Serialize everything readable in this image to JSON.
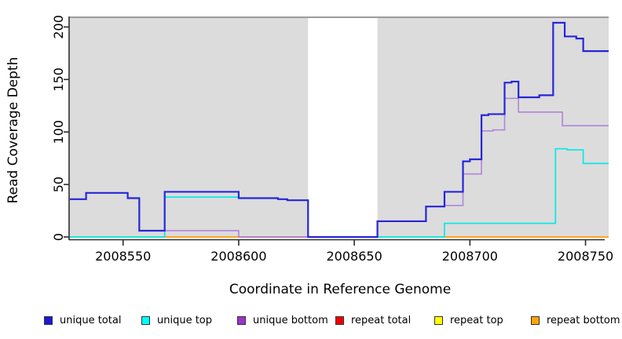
{
  "chart_data": {
    "type": "line",
    "subtype": "step",
    "title": "",
    "xlabel": "Coordinate in Reference Genome",
    "ylabel": "Read Coverage Depth",
    "xlim": [
      2008527,
      2008760
    ],
    "ylim": [
      0,
      210
    ],
    "x_ticks": [
      2008550,
      2008600,
      2008650,
      2008700,
      2008750
    ],
    "y_ticks": [
      0,
      50,
      100,
      150,
      200
    ],
    "grid": false,
    "plot_background": "#DCDCDC",
    "masked_region": {
      "from": 2008630,
      "to": 2008660,
      "color": "#FFFFFF"
    },
    "legend": {
      "position": "bottom",
      "entries": [
        {
          "label": "unique total",
          "color": "#1A1AD6"
        },
        {
          "label": "unique top",
          "color": "#00FFFF"
        },
        {
          "label": "unique bottom",
          "color": "#9933CC"
        },
        {
          "label": "repeat total",
          "color": "#EE0000"
        },
        {
          "label": "repeat top",
          "color": "#FFFF00"
        },
        {
          "label": "repeat bottom",
          "color": "#FFA500"
        }
      ]
    },
    "series": [
      {
        "name": "repeat total",
        "line_color": "#EE0000",
        "width": 2,
        "z": 1,
        "steps": [
          [
            2008527,
            0
          ]
        ]
      },
      {
        "name": "repeat top",
        "line_color": "#FFFF33",
        "width": 2,
        "z": 2,
        "steps": [
          [
            2008527,
            0
          ]
        ]
      },
      {
        "name": "repeat bottom",
        "line_color": "#FFA521",
        "width": 2,
        "z": 3,
        "steps": [
          [
            2008527,
            0
          ]
        ]
      },
      {
        "name": "unique bottom",
        "line_color": "#B184DC",
        "width": 1.6,
        "z": 5,
        "steps": [
          [
            2008527,
            36
          ],
          [
            2008534,
            42
          ],
          [
            2008552,
            37
          ],
          [
            2008557,
            6
          ],
          [
            2008600,
            0
          ],
          [
            2008660,
            15
          ],
          [
            2008681,
            29
          ],
          [
            2008689,
            30
          ],
          [
            2008697,
            60
          ],
          [
            2008705,
            101
          ],
          [
            2008710,
            102
          ],
          [
            2008715,
            132
          ],
          [
            2008721,
            119
          ],
          [
            2008740,
            106
          ]
        ]
      },
      {
        "name": "unique top",
        "line_color": "#00E8E8",
        "width": 1.6,
        "z": 6,
        "steps": [
          [
            2008527,
            0
          ],
          [
            2008568,
            38
          ],
          [
            2008600,
            37
          ],
          [
            2008617,
            36
          ],
          [
            2008621,
            35
          ],
          [
            2008630,
            0
          ],
          [
            2008689,
            13
          ],
          [
            2008737,
            84
          ],
          [
            2008742,
            83
          ],
          [
            2008749,
            70
          ]
        ]
      },
      {
        "name": "unique total",
        "line_color": "#2626D8",
        "width": 2.2,
        "z": 7,
        "steps": [
          [
            2008527,
            36
          ],
          [
            2008534,
            42
          ],
          [
            2008552,
            37
          ],
          [
            2008557,
            6
          ],
          [
            2008568,
            43
          ],
          [
            2008600,
            37
          ],
          [
            2008617,
            36
          ],
          [
            2008621,
            35
          ],
          [
            2008630,
            0
          ],
          [
            2008660,
            15
          ],
          [
            2008681,
            29
          ],
          [
            2008689,
            43
          ],
          [
            2008697,
            72
          ],
          [
            2008700,
            74
          ],
          [
            2008705,
            116
          ],
          [
            2008708,
            117
          ],
          [
            2008715,
            147
          ],
          [
            2008718,
            148
          ],
          [
            2008721,
            133
          ],
          [
            2008730,
            135
          ],
          [
            2008736,
            204
          ],
          [
            2008741,
            191
          ],
          [
            2008746,
            189
          ],
          [
            2008749,
            177
          ]
        ]
      }
    ],
    "baseline_visible_segments": [
      {
        "from": 2008527,
        "to": 2008568,
        "color": "#7ED69B"
      },
      {
        "from": 2008568,
        "to": 2008600,
        "color": "#FFA521"
      },
      {
        "from": 2008600,
        "to": 2008630,
        "color": "#E0607E"
      },
      {
        "from": 2008660,
        "to": 2008689,
        "color": "#7ED69B"
      },
      {
        "from": 2008689,
        "to": 2008760,
        "color": "#FFA521"
      }
    ]
  }
}
